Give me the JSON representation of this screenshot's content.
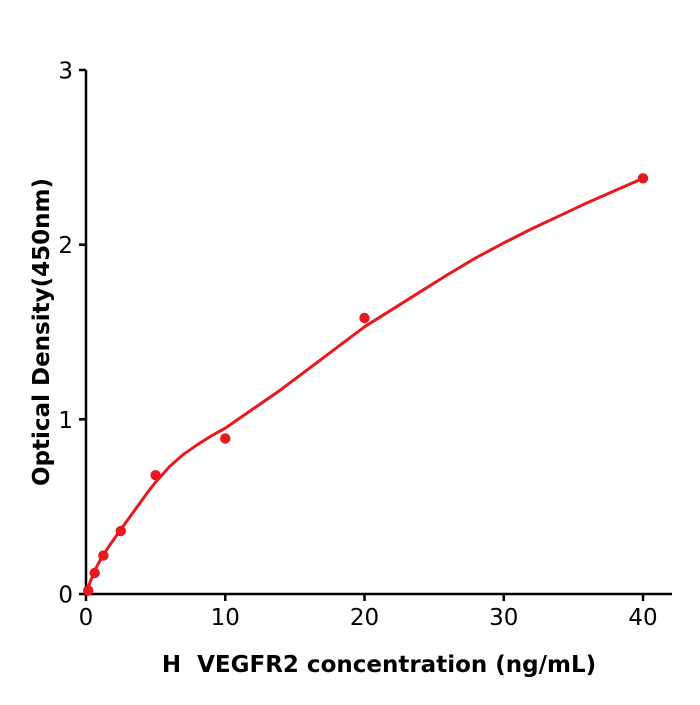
{
  "figure": {
    "background": "#ffffff",
    "axis_color": "#000000",
    "accent_red": "#e8191c"
  },
  "chart_data": {
    "type": "scatter",
    "title": "",
    "xlabel": "H  VEGFR2 concentration (ng/mL)",
    "ylabel": "Optical Density(450nm)",
    "xlim": [
      0,
      42.08
    ],
    "ylim": [
      0,
      3
    ],
    "x_ticks": [
      0,
      10,
      20,
      30,
      40
    ],
    "y_ticks": [
      0,
      1,
      2,
      3
    ],
    "grid": false,
    "legend": "none",
    "series": [
      {
        "name": "standard-points",
        "type": "scatter",
        "color": "#e8191c",
        "x": [
          0.156,
          0.625,
          1.25,
          2.5,
          5,
          10,
          20,
          40
        ],
        "y": [
          0.02,
          0.12,
          0.22,
          0.36,
          0.68,
          0.89,
          1.58,
          2.38
        ]
      },
      {
        "name": "fit-curve",
        "type": "line",
        "color": "#e8191c",
        "x": [
          0,
          0.3,
          0.625,
          1,
          1.25,
          1.75,
          2.5,
          3,
          3.5,
          4,
          4.5,
          5,
          6,
          7,
          8,
          9,
          10,
          12,
          14,
          16,
          18,
          20,
          22,
          24,
          26,
          28,
          30,
          32,
          34,
          36,
          38,
          40
        ],
        "y": [
          0,
          0.07,
          0.135,
          0.19,
          0.225,
          0.285,
          0.37,
          0.425,
          0.48,
          0.535,
          0.59,
          0.64,
          0.73,
          0.8,
          0.855,
          0.905,
          0.95,
          1.06,
          1.17,
          1.29,
          1.41,
          1.53,
          1.63,
          1.73,
          1.83,
          1.925,
          2.01,
          2.09,
          2.165,
          2.24,
          2.31,
          2.38
        ]
      }
    ]
  }
}
